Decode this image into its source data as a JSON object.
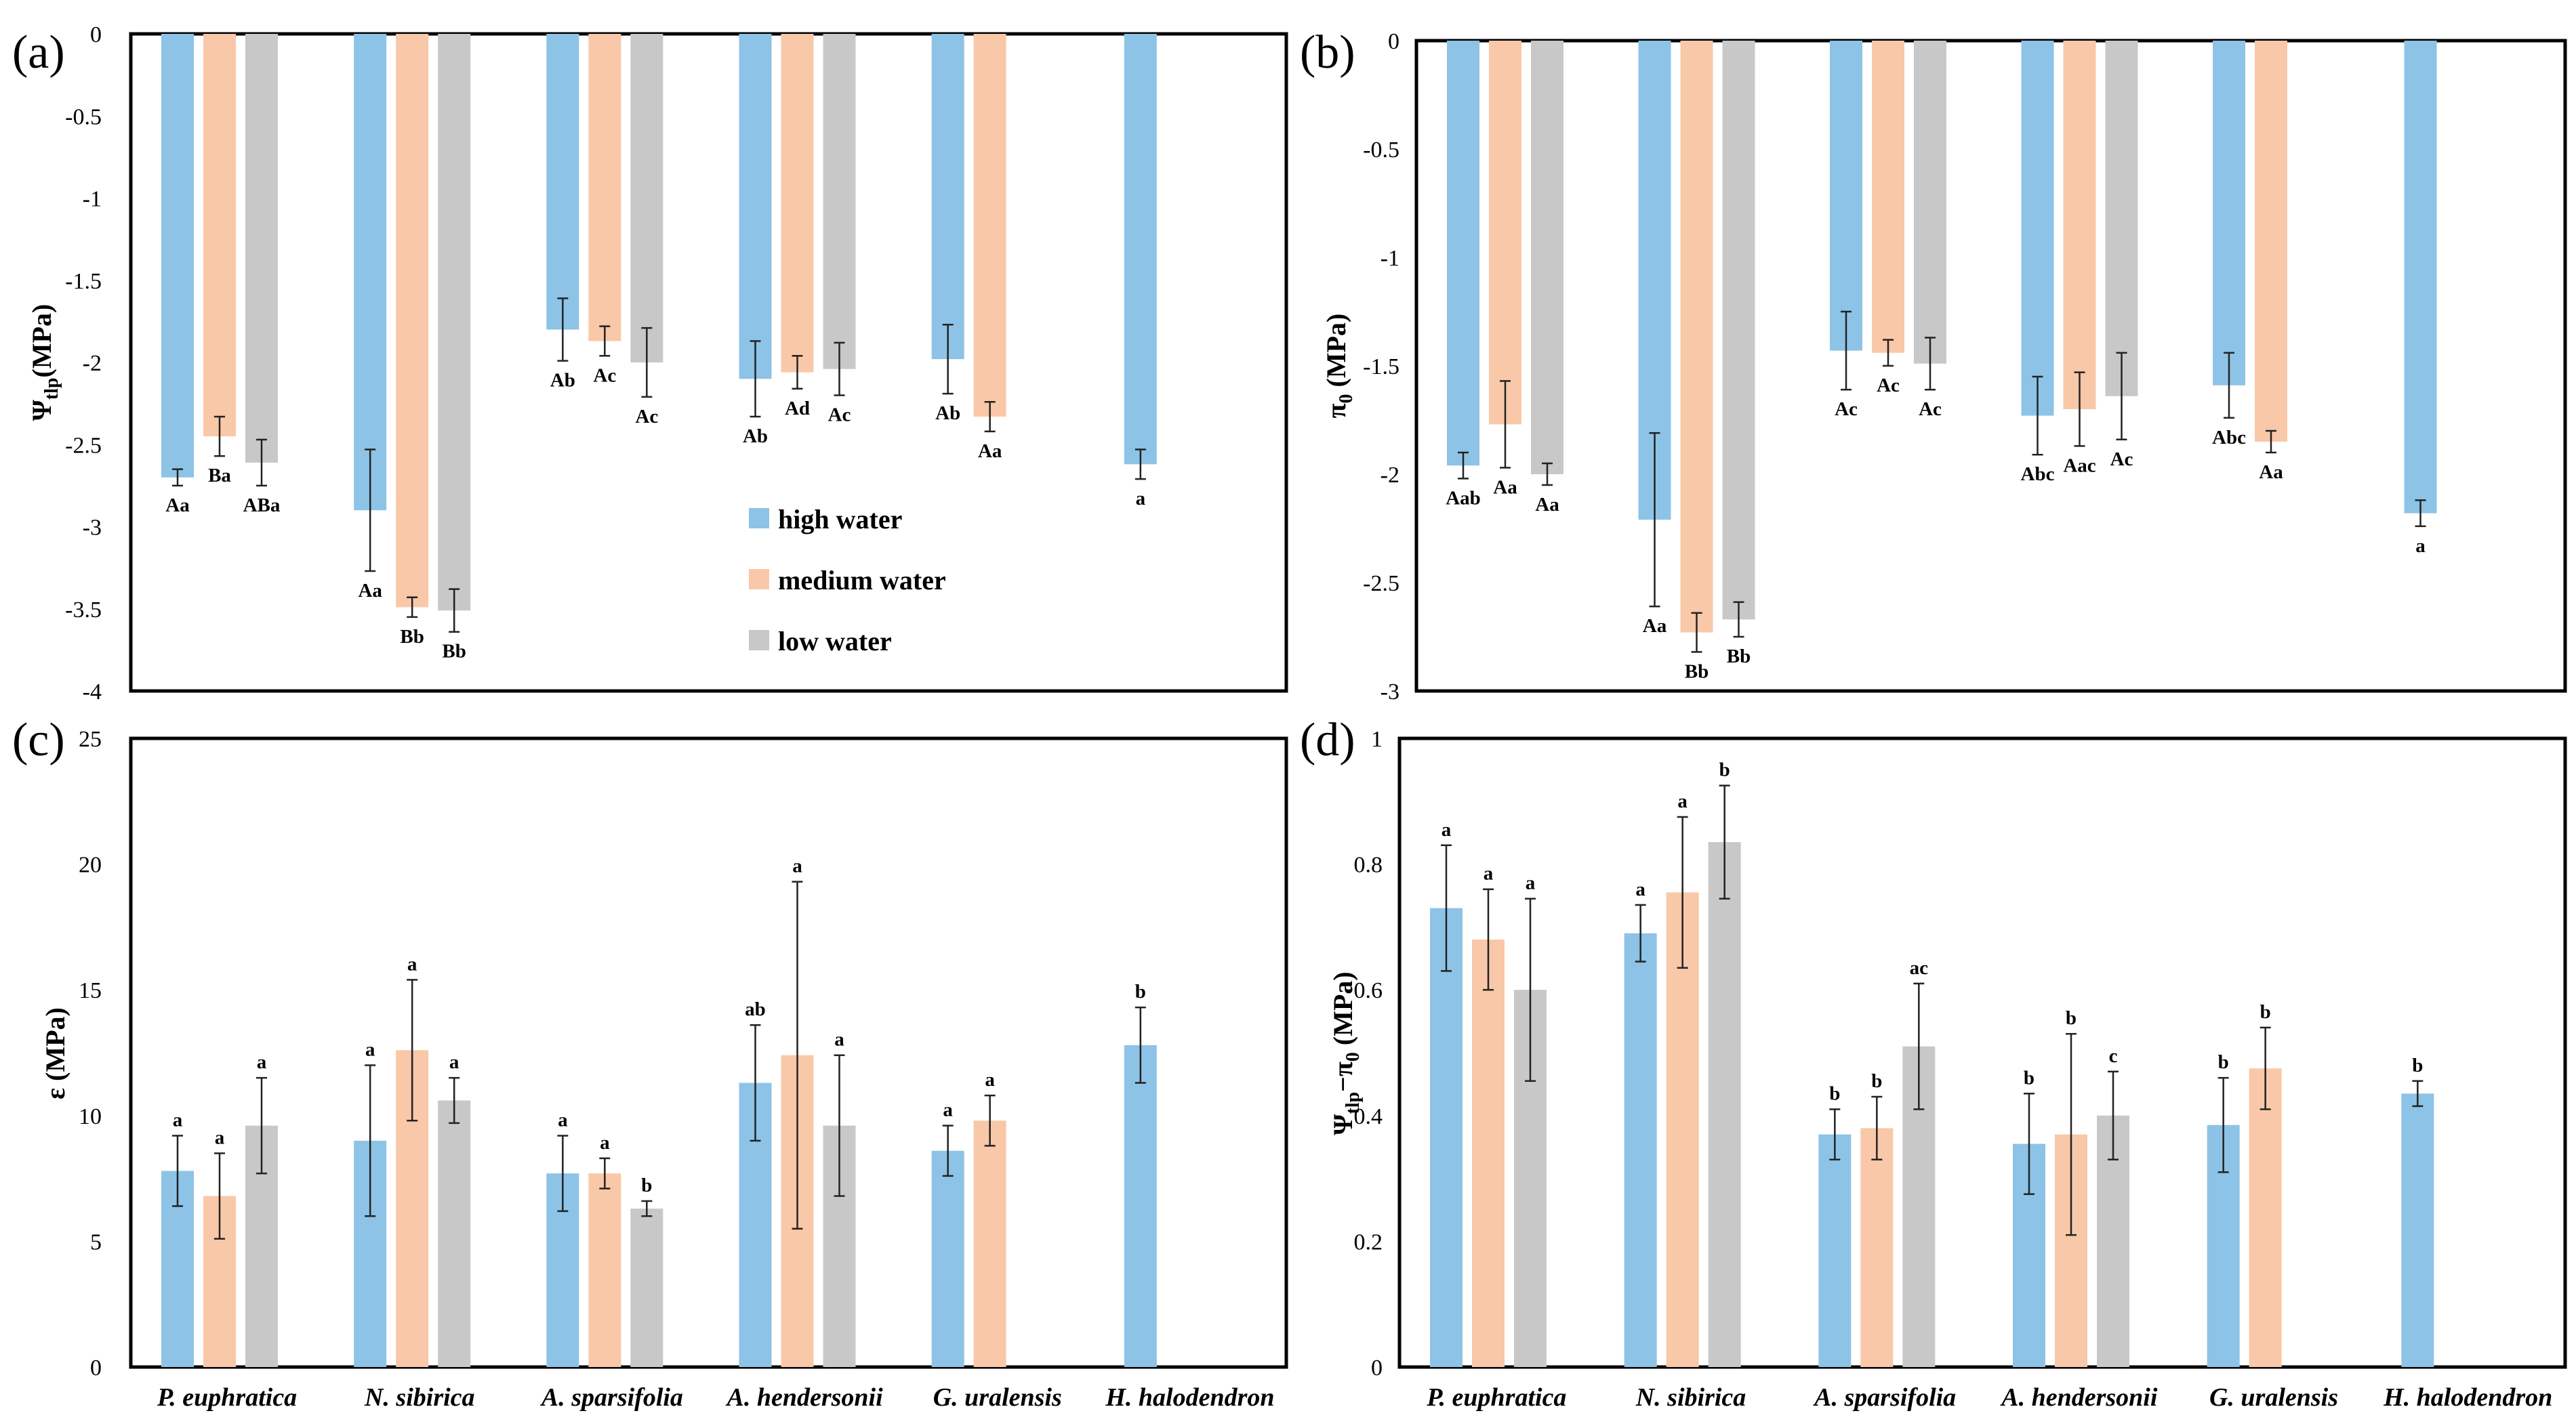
{
  "colors": {
    "high": "#8DC3E6",
    "medium": "#F8C8A8",
    "low": "#C8C8C8"
  },
  "chart_data": [
    {
      "type": "bar",
      "panel": "(a)",
      "ylabel_main": "Ψ",
      "ylabel_sub": "tlp",
      "ylabel_tail": "(MPa)",
      "ylim": [
        -4,
        0
      ],
      "yticks": [
        "0",
        "-0.5",
        "-1",
        "-1.5",
        "-2",
        "-2.5",
        "-3",
        "-3.5",
        "-4"
      ],
      "categories": [
        "P. euphratica",
        "N. sibirica",
        "A. sparsifolia",
        "A. hendersonii",
        "G. uralensis",
        "H. halodendron"
      ],
      "series": [
        {
          "name": "high water",
          "values": [
            -2.7,
            -2.9,
            -1.8,
            -2.1,
            -1.98,
            -2.62
          ],
          "errors": [
            0.05,
            0.37,
            0.19,
            0.23,
            0.21,
            0.09
          ],
          "labels": [
            "Aa",
            "Aa",
            "Ab",
            "Ab",
            "Ab",
            "a"
          ]
        },
        {
          "name": "medium water",
          "values": [
            -2.45,
            -3.49,
            -1.87,
            -2.06,
            -2.33,
            null
          ],
          "errors": [
            0.12,
            0.06,
            0.09,
            0.1,
            0.09,
            null
          ],
          "labels": [
            "Ba",
            "Bb",
            "Ac",
            "Ad",
            "Aa",
            null
          ]
        },
        {
          "name": "low water",
          "values": [
            -2.61,
            -3.51,
            -2.0,
            -2.04,
            null,
            null
          ],
          "errors": [
            0.14,
            0.13,
            0.21,
            0.16,
            null,
            null
          ],
          "labels": [
            "ABa",
            "Bb",
            "Ac",
            "Ac",
            null,
            null
          ]
        }
      ],
      "legend": {
        "position": "center",
        "entries": [
          "high water",
          "medium water",
          "low water"
        ]
      }
    },
    {
      "type": "bar",
      "panel": "(b)",
      "ylabel_main": "π",
      "ylabel_sub": "0",
      "ylabel_tail": " (MPa)",
      "ylim": [
        -3,
        0
      ],
      "yticks": [
        "0",
        "-0.5",
        "-1",
        "-1.5",
        "-2",
        "-2.5",
        "-3"
      ],
      "categories": [
        "P. euphratica",
        "N. sibirica",
        "A. sparsifolia",
        "A. hendersonii",
        "G. uralensis",
        "H. halodendron"
      ],
      "series": [
        {
          "name": "high water",
          "values": [
            -1.96,
            -2.21,
            -1.43,
            -1.73,
            -1.59,
            -2.18
          ],
          "errors": [
            0.06,
            0.4,
            0.18,
            0.18,
            0.15,
            0.06
          ],
          "labels": [
            "Aab",
            "Aa",
            "Ac",
            "Abc",
            "Abc",
            "a"
          ]
        },
        {
          "name": "medium water",
          "values": [
            -1.77,
            -2.73,
            -1.44,
            -1.7,
            -1.85,
            null
          ],
          "errors": [
            0.2,
            0.09,
            0.06,
            0.17,
            0.05,
            null
          ],
          "labels": [
            "Aa",
            "Bb",
            "Ac",
            "Aac",
            "Aa",
            null
          ]
        },
        {
          "name": "low water",
          "values": [
            -2.0,
            -2.67,
            -1.49,
            -1.64,
            null,
            null
          ],
          "errors": [
            0.05,
            0.08,
            0.12,
            0.2,
            null,
            null
          ],
          "labels": [
            "Aa",
            "Bb",
            "Ac",
            "Ac",
            null,
            null
          ]
        }
      ]
    },
    {
      "type": "bar",
      "panel": "(c)",
      "ylabel_main": "ε (MPa)",
      "ylim": [
        0,
        25
      ],
      "yticks": [
        "25",
        "20",
        "15",
        "10",
        "5",
        "0"
      ],
      "categories": [
        "P. euphratica",
        "N. sibirica",
        "A. sparsifolia",
        "A. hendersonii",
        "G. uralensis",
        "H. halodendron"
      ],
      "series": [
        {
          "name": "high water",
          "values": [
            7.8,
            9.0,
            7.7,
            11.3,
            8.6,
            12.8
          ],
          "errors": [
            1.4,
            3.0,
            1.5,
            2.3,
            1.0,
            1.5
          ],
          "labels": [
            "a",
            "a",
            "a",
            "ab",
            "a",
            "b"
          ]
        },
        {
          "name": "medium water",
          "values": [
            6.8,
            12.6,
            7.7,
            12.4,
            9.8,
            null
          ],
          "errors": [
            1.7,
            2.8,
            0.6,
            6.9,
            1.0,
            null
          ],
          "labels": [
            "a",
            "a",
            "a",
            "a",
            "a",
            null
          ]
        },
        {
          "name": "low water",
          "values": [
            9.6,
            10.6,
            6.3,
            9.6,
            null,
            null
          ],
          "errors": [
            1.9,
            0.9,
            0.3,
            2.8,
            null,
            null
          ],
          "labels": [
            "a",
            "a",
            "b",
            "a",
            null,
            null
          ]
        }
      ]
    },
    {
      "type": "bar",
      "panel": "(d)",
      "ylabel_main": "Ψ",
      "ylabel_sub": "tlp",
      "ylabel_mid": "−π",
      "ylabel_sub2": "0",
      "ylabel_tail": " (MPa)",
      "ylim": [
        0,
        1
      ],
      "yticks": [
        "1",
        "0.8",
        "0.6",
        "0.4",
        "0.2",
        "0"
      ],
      "categories": [
        "P. euphratica",
        "N. sibirica",
        "A. sparsifolia",
        "A. hendersonii",
        "G. uralensis",
        "H. halodendron"
      ],
      "series": [
        {
          "name": "high water",
          "values": [
            0.73,
            0.69,
            0.37,
            0.355,
            0.385,
            0.435
          ],
          "errors": [
            0.1,
            0.045,
            0.04,
            0.08,
            0.075,
            0.02
          ],
          "labels": [
            "a",
            "a",
            "b",
            "b",
            "b",
            "b"
          ]
        },
        {
          "name": "medium water",
          "values": [
            0.68,
            0.755,
            0.38,
            0.37,
            0.475,
            null
          ],
          "errors": [
            0.08,
            0.12,
            0.05,
            0.16,
            0.065,
            null
          ],
          "labels": [
            "a",
            "a",
            "b",
            "b",
            "b",
            null
          ]
        },
        {
          "name": "low water",
          "values": [
            0.6,
            0.835,
            0.51,
            0.4,
            null,
            null
          ],
          "errors": [
            0.145,
            0.09,
            0.1,
            0.07,
            null,
            null
          ],
          "labels": [
            "a",
            "b",
            "ac",
            "c",
            null,
            null
          ]
        }
      ]
    }
  ]
}
